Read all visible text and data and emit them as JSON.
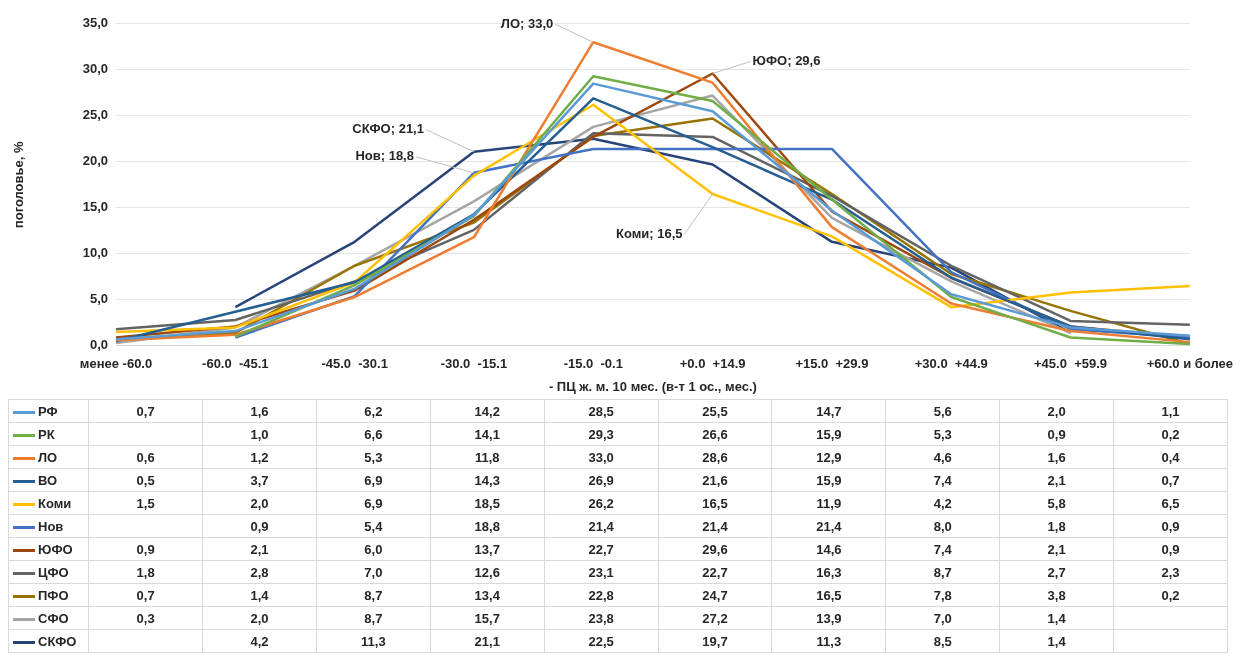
{
  "chart_data": {
    "type": "line",
    "xlabel": "- ПЦ ж. м. 10 мес. (в-т 1 ос., мес.)",
    "ylabel": "поголовье, %",
    "categories": [
      "менее -60.0",
      "-60.0  -45.1",
      "-45.0  -30.1",
      "-30.0  -15.1",
      "-15.0  -0.1",
      "+0.0  +14.9",
      "+15.0  +29.9",
      "+30.0  +44.9",
      "+45.0  +59.9",
      "+60.0 и более"
    ],
    "series": [
      {
        "name": "РФ",
        "color": "#5b9bd5",
        "values": [
          0.7,
          1.6,
          6.2,
          14.2,
          28.5,
          25.5,
          14.7,
          5.6,
          2.0,
          1.1
        ],
        "value_labels": [
          "0,7",
          "1,6",
          "6,2",
          "14,2",
          "28,5",
          "25,5",
          "14,7",
          "5,6",
          "2,0",
          "1,1"
        ]
      },
      {
        "name": "РК",
        "color": "#70ad47",
        "values": [
          null,
          1.0,
          6.6,
          14.1,
          29.3,
          26.6,
          15.9,
          5.3,
          0.9,
          0.2
        ],
        "value_labels": [
          null,
          "1,0",
          "6,6",
          "14,1",
          "29,3",
          "26,6",
          "15,9",
          "5,3",
          "0,9",
          "0,2"
        ]
      },
      {
        "name": "ЛО",
        "color": "#ed7d31",
        "values": [
          0.6,
          1.2,
          5.3,
          11.8,
          33.0,
          28.6,
          12.9,
          4.6,
          1.6,
          0.4
        ],
        "value_labels": [
          "0,6",
          "1,2",
          "5,3",
          "11,8",
          "33,0",
          "28,6",
          "12,9",
          "4,6",
          "1,6",
          "0,4"
        ]
      },
      {
        "name": "ВО",
        "color": "#255e91",
        "values": [
          0.5,
          3.7,
          6.9,
          14.3,
          26.9,
          21.6,
          15.9,
          7.4,
          2.1,
          0.7
        ],
        "value_labels": [
          "0,5",
          "3,7",
          "6,9",
          "14,3",
          "26,9",
          "21,6",
          "15,9",
          "7,4",
          "2,1",
          "0,7"
        ]
      },
      {
        "name": "Коми",
        "color": "#ffc000",
        "values": [
          1.5,
          2.0,
          6.9,
          18.5,
          26.2,
          16.5,
          11.9,
          4.2,
          5.8,
          6.5
        ],
        "value_labels": [
          "1,5",
          "2,0",
          "6,9",
          "18,5",
          "26,2",
          "16,5",
          "11,9",
          "4,2",
          "5,8",
          "6,5"
        ]
      },
      {
        "name": "Нов",
        "color": "#4472c4",
        "values": [
          null,
          0.9,
          5.4,
          18.8,
          21.4,
          21.4,
          21.4,
          8.0,
          1.8,
          0.9
        ],
        "value_labels": [
          null,
          "0,9",
          "5,4",
          "18,8",
          "21,4",
          "21,4",
          "21,4",
          "8,0",
          "1,8",
          "0,9"
        ]
      },
      {
        "name": "ЮФО",
        "color": "#9e480e",
        "values": [
          0.9,
          2.1,
          6.0,
          13.7,
          22.7,
          29.6,
          14.6,
          7.4,
          2.1,
          0.9
        ],
        "value_labels": [
          "0,9",
          "2,1",
          "6,0",
          "13,7",
          "22,7",
          "29,6",
          "14,6",
          "7,4",
          "2,1",
          "0,9"
        ]
      },
      {
        "name": "ЦФО",
        "color": "#636363",
        "values": [
          1.8,
          2.8,
          7.0,
          12.6,
          23.1,
          22.7,
          16.3,
          8.7,
          2.7,
          2.3
        ],
        "value_labels": [
          "1,8",
          "2,8",
          "7,0",
          "12,6",
          "23,1",
          "22,7",
          "16,3",
          "8,7",
          "2,7",
          "2,3"
        ]
      },
      {
        "name": "ПФО",
        "color": "#997300",
        "values": [
          0.7,
          1.4,
          8.7,
          13.4,
          22.8,
          24.7,
          16.5,
          7.8,
          3.8,
          0.2
        ],
        "value_labels": [
          "0,7",
          "1,4",
          "8,7",
          "13,4",
          "22,8",
          "24,7",
          "16,5",
          "7,8",
          "3,8",
          "0,2"
        ]
      },
      {
        "name": "СФО",
        "color": "#a5a5a5",
        "values": [
          0.3,
          2.0,
          8.7,
          15.7,
          23.8,
          27.2,
          13.9,
          7.0,
          1.4,
          null
        ],
        "value_labels": [
          "0,3",
          "2,0",
          "8,7",
          "15,7",
          "23,8",
          "27,2",
          "13,9",
          "7,0",
          "1,4",
          null
        ]
      },
      {
        "name": "СКФО",
        "color": "#264478",
        "values": [
          null,
          4.2,
          11.3,
          21.1,
          22.5,
          19.7,
          11.3,
          8.5,
          1.4,
          null
        ],
        "value_labels": [
          null,
          "4,2",
          "11,3",
          "21,1",
          "22,5",
          "19,7",
          "11,3",
          "8,5",
          "1,4",
          null
        ]
      }
    ],
    "ylim": [
      0,
      35
    ],
    "yticks": [
      {
        "value": 0,
        "label": "0,0"
      },
      {
        "value": 5,
        "label": "5,0"
      },
      {
        "value": 10,
        "label": "10,0"
      },
      {
        "value": 15,
        "label": "15,0"
      },
      {
        "value": 20,
        "label": "20,0"
      },
      {
        "value": 25,
        "label": "25,0"
      },
      {
        "value": 30,
        "label": "30,0"
      },
      {
        "value": 35,
        "label": "35,0"
      }
    ],
    "grid": "y",
    "legend": "bottom",
    "marker": "none",
    "line_style": "solid",
    "annotations": [
      {
        "text": "ЛО; 33,0",
        "x": "-15.0  -0.1",
        "y": 33.0
      },
      {
        "text": "ЮФО; 29,6",
        "x": "+0.0  +14.9",
        "y": 29.6
      },
      {
        "text": "СКФО; 21,1",
        "x": "-30.0  -15.1",
        "y": 21.1
      },
      {
        "text": "Нов; 18,8",
        "x": "-30.0  -15.1",
        "y": 18.8
      },
      {
        "text": "Коми; 16,5",
        "x": "+0.0  +14.9",
        "y": 16.5
      }
    ]
  }
}
